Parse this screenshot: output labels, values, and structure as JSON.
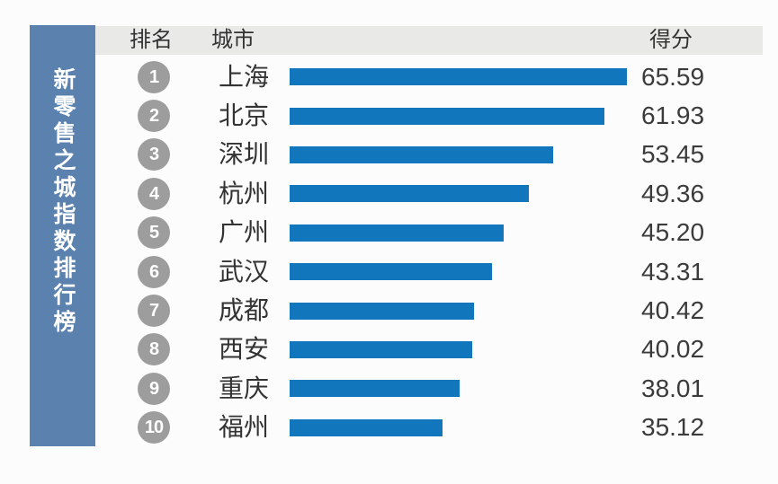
{
  "sidebar": {
    "title": "新零售之城指数排行榜"
  },
  "table": {
    "headers": {
      "rank": "排名",
      "city": "城市",
      "score": "得分"
    }
  },
  "chart_data": {
    "type": "bar",
    "orientation": "horizontal",
    "title": "新零售之城指数排行榜",
    "categories": [
      "上海",
      "北京",
      "深圳",
      "杭州",
      "广州",
      "武汉",
      "成都",
      "西安",
      "重庆",
      "福州"
    ],
    "ranks": [
      "1",
      "2",
      "3",
      "4",
      "5",
      "6",
      "7",
      "8",
      "9",
      "10"
    ],
    "values": [
      65.59,
      61.93,
      53.45,
      49.36,
      45.2,
      43.31,
      40.42,
      40.02,
      38.01,
      35.12
    ],
    "value_labels": [
      "65.59",
      "61.93",
      "53.45",
      "49.36",
      "45.20",
      "43.31",
      "40.42",
      "40.02",
      "38.01",
      "35.12"
    ],
    "xlabel": "得分",
    "ylabel": "城市",
    "xlim": [
      10,
      65.59
    ],
    "grid": false,
    "legend": false
  },
  "colors": {
    "bar": "#1276bd",
    "sidebar_bg": "#5b82ae",
    "header_bg": "#e9e9e7",
    "rank_badge": "#9d9d9d",
    "text": "#333333",
    "score_text": "#3b3b3b",
    "page_bg": "#fcfcfc"
  }
}
